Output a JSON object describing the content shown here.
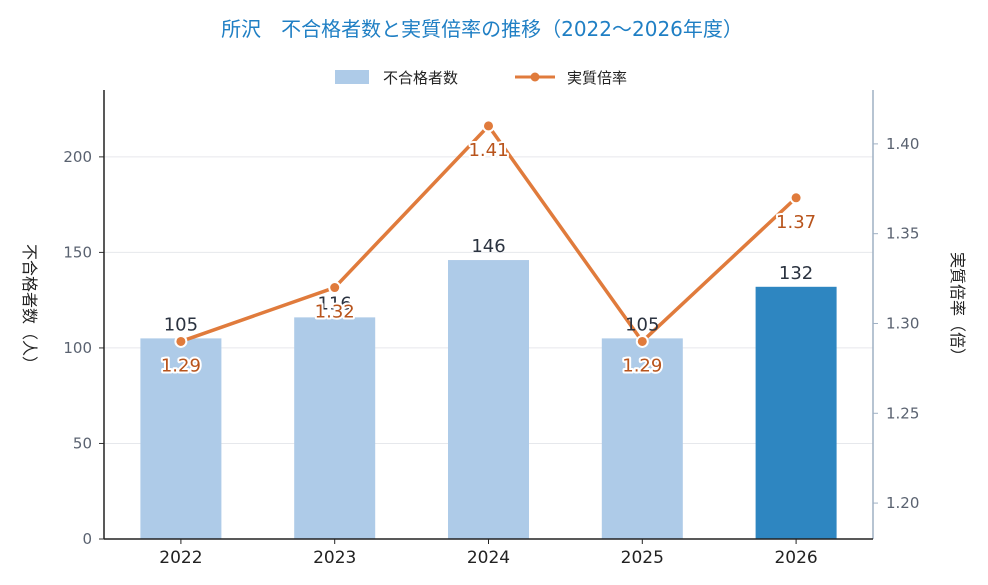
{
  "chart_data": {
    "type": "bar",
    "title": "所沢　不合格者数と実質倍率の推移（2022〜2026年度）",
    "categories": [
      "2022",
      "2023",
      "2024",
      "2025",
      "2026"
    ],
    "series": [
      {
        "name": "不合格者数",
        "type": "bar",
        "axis": "left",
        "values": [
          105,
          116,
          146,
          105,
          132
        ],
        "labels": [
          "105",
          "116",
          "146",
          "105",
          "132"
        ]
      },
      {
        "name": "実質倍率",
        "type": "line",
        "axis": "right",
        "values": [
          1.29,
          1.32,
          1.41,
          1.29,
          1.37
        ],
        "labels": [
          "1.29",
          "1.32",
          "1.41",
          "1.29",
          "1.37"
        ]
      }
    ],
    "ylabel": "不合格者数（人）",
    "y2label": "実質倍率（倍）",
    "ylim": [
      0,
      235
    ],
    "y2lim": [
      1.18,
      1.43
    ],
    "yticks": [
      "0",
      "50",
      "100",
      "150",
      "200"
    ],
    "y2ticks": [
      "1.20",
      "1.25",
      "1.30",
      "1.35",
      "1.40"
    ],
    "grid": true,
    "legend": "top-center",
    "colors": {
      "bar": "#aecbe8",
      "bar_highlight": "#2e86c1",
      "line": "#e07b3c",
      "title": "#1f7fc4",
      "rate_label": "#b8541c"
    }
  }
}
